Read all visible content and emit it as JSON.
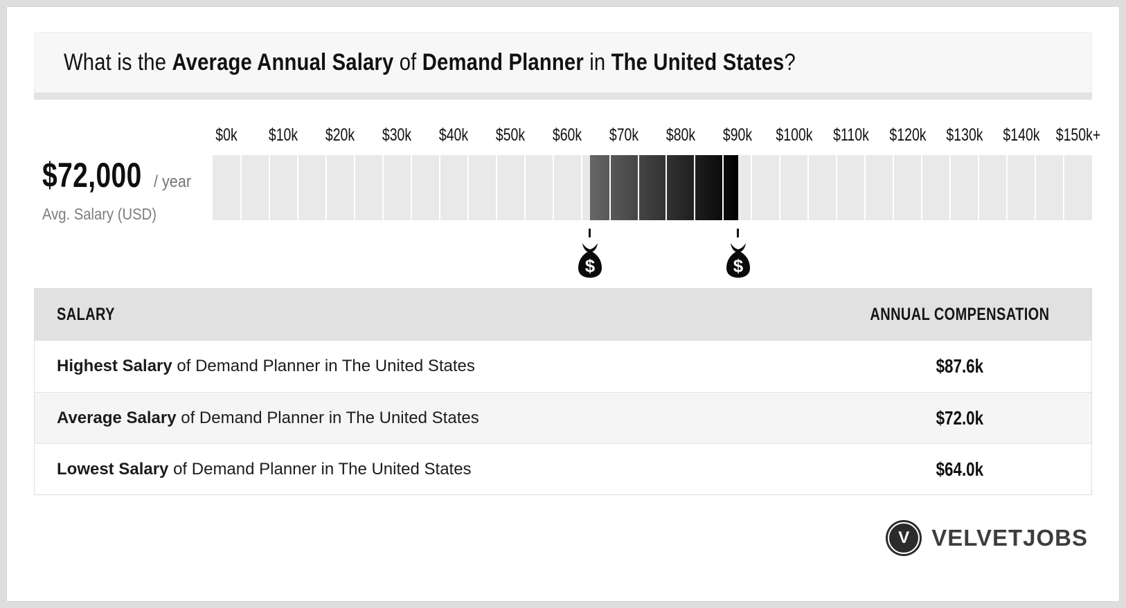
{
  "title": {
    "segments": [
      {
        "text": "What is the ",
        "bold": false
      },
      {
        "text": "Average Annual Salary",
        "bold": true
      },
      {
        "text": " of ",
        "bold": false
      },
      {
        "text": "Demand Planner",
        "bold": true
      },
      {
        "text": " in ",
        "bold": false
      },
      {
        "text": "The United States",
        "bold": true
      },
      {
        "text": "?",
        "bold": false
      }
    ]
  },
  "salary_summary": {
    "amount": "$72,000",
    "per": "/ year",
    "caption": "Avg. Salary (USD)"
  },
  "chart_data": {
    "type": "bar",
    "title": "Demand Planner salary range scale",
    "axis_max": 155,
    "cell_size_k": 5,
    "axis_values": [
      0,
      10,
      20,
      30,
      40,
      50,
      60,
      70,
      80,
      90,
      100,
      110,
      120,
      130,
      140,
      150
    ],
    "axis_ticks": [
      "$0k",
      "$10k",
      "$20k",
      "$30k",
      "$40k",
      "$50k",
      "$60k",
      "$70k",
      "$80k",
      "$90k",
      "$100k",
      "$110k",
      "$120k",
      "$130k",
      "$140k",
      "$150k+"
    ],
    "highlight": {
      "low": 64.0,
      "high": 87.6
    },
    "markers": [
      {
        "name": "lowest-salary",
        "value": 64.0
      },
      {
        "name": "highest-salary",
        "value": 87.6
      }
    ],
    "average": {
      "value": 72,
      "label": "$72,000"
    },
    "colors": {
      "track": "#e9e9e9",
      "gradient_start": "#666666",
      "gradient_end": "#010101",
      "marker": "#111111"
    }
  },
  "table": {
    "headers": [
      "SALARY",
      "ANNUAL COMPENSATION"
    ],
    "rows": [
      {
        "label_bold": "Highest Salary",
        "label_rest": " of Demand Planner in The United States",
        "value": "$87.6k"
      },
      {
        "label_bold": "Average Salary",
        "label_rest": " of Demand Planner in The United States",
        "value": "$72.0k"
      },
      {
        "label_bold": "Lowest Salary",
        "label_rest": " of Demand Planner in The United States",
        "value": "$64.0k"
      }
    ]
  },
  "footer": {
    "brand": "VELVETJOBS",
    "logo_letter": "V"
  }
}
